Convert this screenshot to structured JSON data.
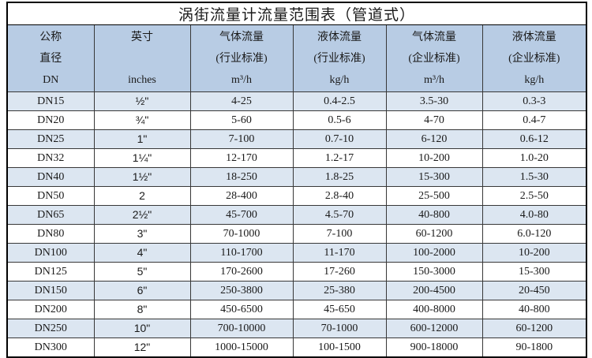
{
  "title": "涡街流量计流量范围表（管道式）",
  "columns": [
    {
      "lines": [
        "公称",
        "直径",
        "DN"
      ]
    },
    {
      "lines": [
        "英寸",
        "",
        "inches"
      ]
    },
    {
      "lines": [
        "气体流量",
        "(行业标准)",
        "m³/h"
      ]
    },
    {
      "lines": [
        "液体流量",
        "(行业标准)",
        "kg/h"
      ]
    },
    {
      "lines": [
        "气体流量",
        "(企业标准)",
        "m³/h"
      ]
    },
    {
      "lines": [
        "液体流量",
        "(企业标准)",
        "kg/h"
      ]
    }
  ],
  "rows": [
    {
      "dn": "DN15",
      "inches": "½\"",
      "gas_ind": "4-25",
      "liq_ind": "0.4-2.5",
      "gas_ent": "3.5-30",
      "liq_ent": "0.3-3"
    },
    {
      "dn": "DN20",
      "inches": "¾\"",
      "gas_ind": "5-60",
      "liq_ind": "0.5-6",
      "gas_ent": "4-70",
      "liq_ent": "0.4-7"
    },
    {
      "dn": "DN25",
      "inches": "1\"",
      "gas_ind": "7-100",
      "liq_ind": "0.7-10",
      "gas_ent": "6-120",
      "liq_ent": "0.6-12"
    },
    {
      "dn": "DN32",
      "inches": "1¼\"",
      "gas_ind": "12-170",
      "liq_ind": "1.2-17",
      "gas_ent": "10-200",
      "liq_ent": "1.0-20"
    },
    {
      "dn": "DN40",
      "inches": "1½\"",
      "gas_ind": "18-250",
      "liq_ind": "1.8-25",
      "gas_ent": "15-300",
      "liq_ent": "1.5-30"
    },
    {
      "dn": "DN50",
      "inches": "2",
      "gas_ind": "28-400",
      "liq_ind": "2.8-40",
      "gas_ent": "25-500",
      "liq_ent": "2.5-50"
    },
    {
      "dn": "DN65",
      "inches": "2½\"",
      "gas_ind": "45-700",
      "liq_ind": "4.5-70",
      "gas_ent": "40-800",
      "liq_ent": "4.0-80"
    },
    {
      "dn": "DN80",
      "inches": "3\"",
      "gas_ind": "70-1000",
      "liq_ind": "7-100",
      "gas_ent": "60-1200",
      "liq_ent": "6.0-120"
    },
    {
      "dn": "DN100",
      "inches": "4\"",
      "gas_ind": "110-1700",
      "liq_ind": "11-170",
      "gas_ent": "100-2000",
      "liq_ent": "10-200"
    },
    {
      "dn": "DN125",
      "inches": "5\"",
      "gas_ind": "170-2600",
      "liq_ind": "17-260",
      "gas_ent": "150-3000",
      "liq_ent": "15-300"
    },
    {
      "dn": "DN150",
      "inches": "6\"",
      "gas_ind": "250-3800",
      "liq_ind": "25-380",
      "gas_ent": "200-4500",
      "liq_ent": "20-450"
    },
    {
      "dn": "DN200",
      "inches": "8\"",
      "gas_ind": "450-6500",
      "liq_ind": "45-650",
      "gas_ent": "400-8000",
      "liq_ent": "40-800"
    },
    {
      "dn": "DN250",
      "inches": "10\"",
      "gas_ind": "700-10000",
      "liq_ind": "70-1000",
      "gas_ent": "600-12000",
      "liq_ent": "60-1200"
    },
    {
      "dn": "DN300",
      "inches": "12\"",
      "gas_ind": "1000-15000",
      "liq_ind": "100-1500",
      "gas_ent": "900-18000",
      "liq_ent": "90-1800"
    }
  ],
  "colors": {
    "header_bg": "#b8cce4",
    "band_row_bg": "#dce6f1",
    "plain_row_bg": "#ffffff",
    "outer_border": "#000000",
    "grid_line": "#383838",
    "text": "#1a1a1a"
  }
}
